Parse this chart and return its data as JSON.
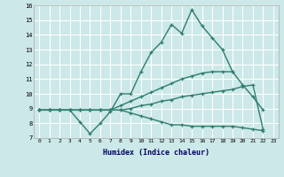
{
  "title": "",
  "xlabel": "Humidex (Indice chaleur)",
  "xlim": [
    -0.5,
    23.5
  ],
  "ylim": [
    7,
    16
  ],
  "yticks": [
    7,
    8,
    9,
    10,
    11,
    12,
    13,
    14,
    15,
    16
  ],
  "xticks": [
    0,
    1,
    2,
    3,
    4,
    5,
    6,
    7,
    8,
    9,
    10,
    11,
    12,
    13,
    14,
    15,
    16,
    17,
    18,
    19,
    20,
    21,
    22,
    23
  ],
  "bg_color": "#cce8e8",
  "grid_color": "#b8d8d8",
  "line_color": "#2e7d6e",
  "line_width": 1.0,
  "markersize": 3.5,
  "series": [
    [
      8.9,
      8.9,
      8.9,
      8.9,
      8.1,
      7.3,
      8.0,
      8.8,
      10.0,
      10.0,
      11.5,
      12.8,
      13.5,
      14.7,
      14.1,
      15.7,
      14.6,
      13.8,
      13.0,
      11.5,
      10.6,
      9.8,
      8.9,
      null
    ],
    [
      8.9,
      8.9,
      8.9,
      8.9,
      8.9,
      8.9,
      8.9,
      8.9,
      9.2,
      9.5,
      9.8,
      10.1,
      10.4,
      10.7,
      11.0,
      11.2,
      11.4,
      11.5,
      11.5,
      11.5,
      null,
      null,
      null,
      null
    ],
    [
      8.9,
      8.9,
      8.9,
      8.9,
      8.9,
      8.9,
      8.9,
      8.9,
      8.9,
      9.0,
      9.2,
      9.3,
      9.5,
      9.6,
      9.8,
      9.9,
      10.0,
      10.1,
      10.2,
      10.3,
      10.5,
      10.6,
      7.6,
      null
    ],
    [
      8.9,
      8.9,
      8.9,
      8.9,
      8.9,
      8.9,
      8.9,
      8.9,
      8.9,
      8.7,
      8.5,
      8.3,
      8.1,
      7.9,
      7.9,
      7.8,
      7.8,
      7.8,
      7.8,
      7.8,
      7.7,
      7.6,
      7.5,
      null
    ]
  ]
}
